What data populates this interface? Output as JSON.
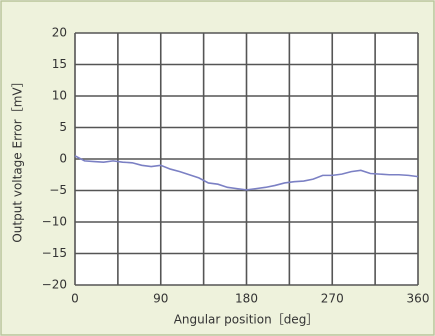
{
  "chart_data": {
    "type": "line",
    "xlabel": "Angular position［deg］",
    "ylabel": "Output voltage Error［mV］",
    "x": [
      0,
      10,
      20,
      30,
      40,
      50,
      60,
      70,
      80,
      90,
      100,
      110,
      120,
      130,
      140,
      150,
      160,
      170,
      180,
      190,
      200,
      210,
      220,
      230,
      240,
      250,
      260,
      270,
      280,
      290,
      300,
      310,
      320,
      330,
      340,
      350,
      360
    ],
    "series": [
      {
        "color": "#7b80c4",
        "values": [
          0.5,
          -0.3,
          -0.4,
          -0.5,
          -0.3,
          -0.5,
          -0.6,
          -1,
          -1.2,
          -1,
          -1.6,
          -2,
          -2.5,
          -3,
          -3.8,
          -4,
          -4.5,
          -4.7,
          -4.9,
          -4.7,
          -4.5,
          -4.2,
          -3.8,
          -3.6,
          -3.5,
          -3.2,
          -2.6,
          -2.6,
          -2.4,
          -2,
          -1.8,
          -2.3,
          -2.4,
          -2.5,
          -2.5,
          -2.6,
          -2.8
        ]
      }
    ],
    "xlim": [
      0,
      360
    ],
    "xticks": [
      0,
      90,
      180,
      270,
      360
    ],
    "xminor": [
      45,
      135,
      225,
      315
    ],
    "ylim": [
      -20,
      20
    ],
    "yticks": [
      20,
      15,
      10,
      5,
      0,
      {
        "value": -5,
        "label": "−5"
      },
      {
        "value": -10,
        "label": "−10"
      },
      {
        "value": -15,
        "label": "−15"
      },
      {
        "value": -20,
        "label": "−20"
      }
    ],
    "grid": true
  }
}
